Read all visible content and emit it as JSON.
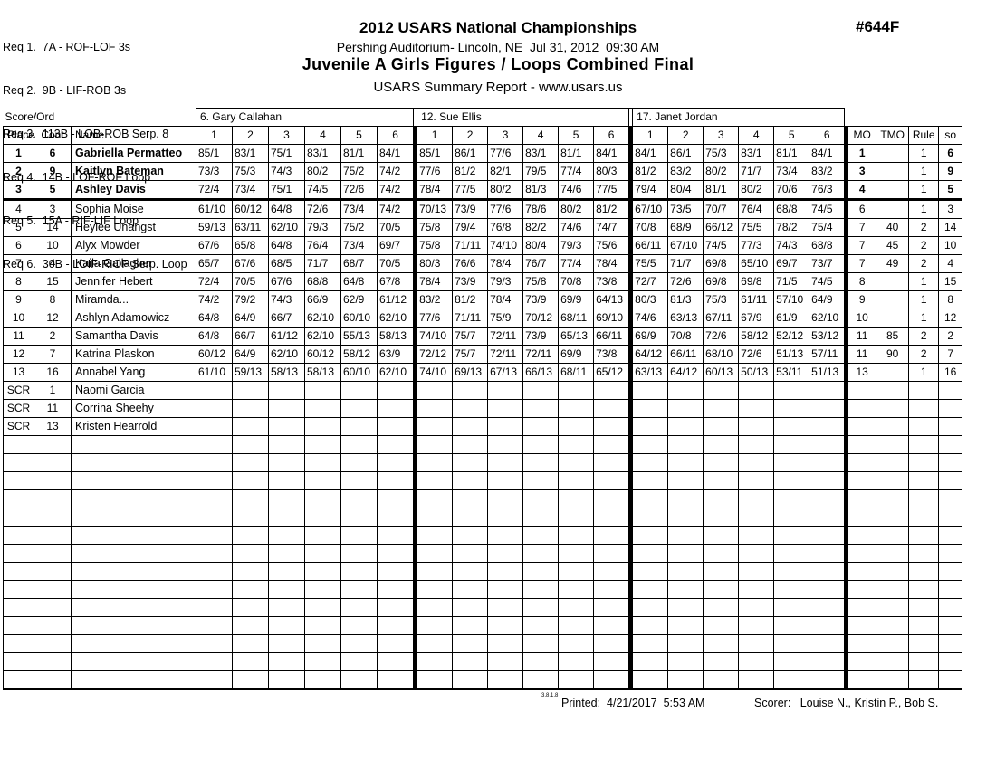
{
  "colors": {
    "ink": "#000000",
    "paper": "#ffffff"
  },
  "header": {
    "requirements": [
      "Req 1.  7A - ROF-LOF 3s",
      "Req 2.  9B - LIF-ROB 3s",
      "Req 3.  113B - LOB-ROB Serp. 8",
      "Req 4.  14B - LOF-ROF Loop",
      "Req 5.  15A - RIF-LIF Loop",
      "Req 6.  30B - LOIF-RIOF Serp. Loop"
    ],
    "title": "2012 USARS National Championships",
    "venue_line": "Pershing Auditorium- Lincoln, NE  Jul 31, 2012  09:30 AM",
    "event_name": "Juvenile A Girls Figures / Loops Combined Final",
    "report_line": "USARS Summary Report - www.usars.us",
    "doc_number": "#644F"
  },
  "table": {
    "score_ord_label": "Score/Ord",
    "judges": [
      "6.  Gary Callahan",
      "12.  Sue Ellis",
      "17.  Janet Jordan"
    ],
    "left_col_headers": [
      "Place",
      "Cont",
      "Name"
    ],
    "score_col_headers": [
      "1",
      "2",
      "3",
      "4",
      "5",
      "6"
    ],
    "right_col_headers": [
      "MO",
      "TMO",
      "Rule",
      "so"
    ],
    "rows": [
      {
        "place": "1",
        "cont": "6",
        "name": "Gabriella Permatteo",
        "bold": true,
        "j1": [
          "85/1",
          "83/1",
          "75/1",
          "83/1",
          "81/1",
          "84/1"
        ],
        "j2": [
          "85/1",
          "86/1",
          "77/6",
          "83/1",
          "81/1",
          "84/1"
        ],
        "j3": [
          "84/1",
          "86/1",
          "75/3",
          "83/1",
          "81/1",
          "84/1"
        ],
        "mo": "1",
        "tmo": "",
        "rule": "1",
        "so": "6"
      },
      {
        "place": "2",
        "cont": "9",
        "name": "Kaitlyn Bateman",
        "bold": true,
        "j1": [
          "73/3",
          "75/3",
          "74/3",
          "80/2",
          "75/2",
          "74/2"
        ],
        "j2": [
          "77/6",
          "81/2",
          "82/1",
          "79/5",
          "77/4",
          "80/3"
        ],
        "j3": [
          "81/2",
          "83/2",
          "80/2",
          "71/7",
          "73/4",
          "83/2"
        ],
        "mo": "3",
        "tmo": "",
        "rule": "1",
        "so": "9"
      },
      {
        "place": "3",
        "cont": "5",
        "name": "Ashley Davis",
        "bold": true,
        "thick": true,
        "j1": [
          "72/4",
          "73/4",
          "75/1",
          "74/5",
          "72/6",
          "74/2"
        ],
        "j2": [
          "78/4",
          "77/5",
          "80/2",
          "81/3",
          "74/6",
          "77/5"
        ],
        "j3": [
          "79/4",
          "80/4",
          "81/1",
          "80/2",
          "70/6",
          "76/3"
        ],
        "mo": "4",
        "tmo": "",
        "rule": "1",
        "so": "5"
      },
      {
        "place": "4",
        "cont": "3",
        "name": "Sophia Moise",
        "j1": [
          "61/10",
          "60/12",
          "64/8",
          "72/6",
          "73/4",
          "74/2"
        ],
        "j2": [
          "70/13",
          "73/9",
          "77/6",
          "78/6",
          "80/2",
          "81/2"
        ],
        "j3": [
          "67/10",
          "73/5",
          "70/7",
          "76/4",
          "68/8",
          "74/5"
        ],
        "mo": "6",
        "tmo": "",
        "rule": "1",
        "so": "3"
      },
      {
        "place": "5",
        "cont": "14",
        "name": "Heylee Unangst",
        "j1": [
          "59/13",
          "63/11",
          "62/10",
          "79/3",
          "75/2",
          "70/5"
        ],
        "j2": [
          "75/8",
          "79/4",
          "76/8",
          "82/2",
          "74/6",
          "74/7"
        ],
        "j3": [
          "70/8",
          "68/9",
          "66/12",
          "75/5",
          "78/2",
          "75/4"
        ],
        "mo": "7",
        "tmo": "40",
        "rule": "2",
        "so": "14"
      },
      {
        "place": "6",
        "cont": "10",
        "name": "Alyx Mowder",
        "j1": [
          "67/6",
          "65/8",
          "64/8",
          "76/4",
          "73/4",
          "69/7"
        ],
        "j2": [
          "75/8",
          "71/11",
          "74/10",
          "80/4",
          "79/3",
          "75/6"
        ],
        "j3": [
          "66/11",
          "67/10",
          "74/5",
          "77/3",
          "74/3",
          "68/8"
        ],
        "mo": "7",
        "tmo": "45",
        "rule": "2",
        "so": "10"
      },
      {
        "place": "7",
        "cont": "4",
        "name": "Kaila Gallagher",
        "j1": [
          "65/7",
          "67/6",
          "68/5",
          "71/7",
          "68/7",
          "70/5"
        ],
        "j2": [
          "80/3",
          "76/6",
          "78/4",
          "76/7",
          "77/4",
          "78/4"
        ],
        "j3": [
          "75/5",
          "71/7",
          "69/8",
          "65/10",
          "69/7",
          "73/7"
        ],
        "mo": "7",
        "tmo": "49",
        "rule": "2",
        "so": "4"
      },
      {
        "place": "8",
        "cont": "15",
        "name": "Jennifer Hebert",
        "j1": [
          "72/4",
          "70/5",
          "67/6",
          "68/8",
          "64/8",
          "67/8"
        ],
        "j2": [
          "78/4",
          "73/9",
          "79/3",
          "75/8",
          "70/8",
          "73/8"
        ],
        "j3": [
          "72/7",
          "72/6",
          "69/8",
          "69/8",
          "71/5",
          "74/5"
        ],
        "mo": "8",
        "tmo": "",
        "rule": "1",
        "so": "15"
      },
      {
        "place": "9",
        "cont": "8",
        "name": "Miramda...",
        "j1": [
          "74/2",
          "79/2",
          "74/3",
          "66/9",
          "62/9",
          "61/12"
        ],
        "j2": [
          "83/2",
          "81/2",
          "78/4",
          "73/9",
          "69/9",
          "64/13"
        ],
        "j3": [
          "80/3",
          "81/3",
          "75/3",
          "61/11",
          "57/10",
          "64/9"
        ],
        "mo": "9",
        "tmo": "",
        "rule": "1",
        "so": "8"
      },
      {
        "place": "10",
        "cont": "12",
        "name": "Ashlyn Adamowicz",
        "j1": [
          "64/8",
          "64/9",
          "66/7",
          "62/10",
          "60/10",
          "62/10"
        ],
        "j2": [
          "77/6",
          "71/11",
          "75/9",
          "70/12",
          "68/11",
          "69/10"
        ],
        "j3": [
          "74/6",
          "63/13",
          "67/11",
          "67/9",
          "61/9",
          "62/10"
        ],
        "mo": "10",
        "tmo": "",
        "rule": "1",
        "so": "12"
      },
      {
        "place": "11",
        "cont": "2",
        "name": "Samantha Davis",
        "j1": [
          "64/8",
          "66/7",
          "61/12",
          "62/10",
          "55/13",
          "58/13"
        ],
        "j2": [
          "74/10",
          "75/7",
          "72/11",
          "73/9",
          "65/13",
          "66/11"
        ],
        "j3": [
          "69/9",
          "70/8",
          "72/6",
          "58/12",
          "52/12",
          "53/12"
        ],
        "mo": "11",
        "tmo": "85",
        "rule": "2",
        "so": "2"
      },
      {
        "place": "12",
        "cont": "7",
        "name": "Katrina Plaskon",
        "j1": [
          "60/12",
          "64/9",
          "62/10",
          "60/12",
          "58/12",
          "63/9"
        ],
        "j2": [
          "72/12",
          "75/7",
          "72/11",
          "72/11",
          "69/9",
          "73/8"
        ],
        "j3": [
          "64/12",
          "66/11",
          "68/10",
          "72/6",
          "51/13",
          "57/11"
        ],
        "mo": "11",
        "tmo": "90",
        "rule": "2",
        "so": "7"
      },
      {
        "place": "13",
        "cont": "16",
        "name": "Annabel Yang",
        "j1": [
          "61/10",
          "59/13",
          "58/13",
          "58/13",
          "60/10",
          "62/10"
        ],
        "j2": [
          "74/10",
          "69/13",
          "67/13",
          "66/13",
          "68/11",
          "65/12"
        ],
        "j3": [
          "63/13",
          "64/12",
          "60/13",
          "50/13",
          "53/11",
          "51/13"
        ],
        "mo": "13",
        "tmo": "",
        "rule": "1",
        "so": "16"
      },
      {
        "place": "SCR",
        "cont": "1",
        "name": "Naomi Garcia",
        "j1": [
          "",
          "",
          "",
          "",
          "",
          ""
        ],
        "j2": [
          "",
          "",
          "",
          "",
          "",
          ""
        ],
        "j3": [
          "",
          "",
          "",
          "",
          "",
          ""
        ],
        "mo": "",
        "tmo": "",
        "rule": "",
        "so": ""
      },
      {
        "place": "SCR",
        "cont": "11",
        "name": "Corrina Sheehy",
        "j1": [
          "",
          "",
          "",
          "",
          "",
          ""
        ],
        "j2": [
          "",
          "",
          "",
          "",
          "",
          ""
        ],
        "j3": [
          "",
          "",
          "",
          "",
          "",
          ""
        ],
        "mo": "",
        "tmo": "",
        "rule": "",
        "so": ""
      },
      {
        "place": "SCR",
        "cont": "13",
        "name": "Kristen Hearrold",
        "j1": [
          "",
          "",
          "",
          "",
          "",
          ""
        ],
        "j2": [
          "",
          "",
          "",
          "",
          "",
          ""
        ],
        "j3": [
          "",
          "",
          "",
          "",
          "",
          ""
        ],
        "mo": "",
        "tmo": "",
        "rule": "",
        "so": ""
      }
    ],
    "empty_rows": 14
  },
  "footer": {
    "version": "3.8.1.8",
    "printed": "Printed:  4/21/2017  5:53 AM",
    "scorer": "Scorer:   Louise N., Kristin P., Bob S."
  }
}
